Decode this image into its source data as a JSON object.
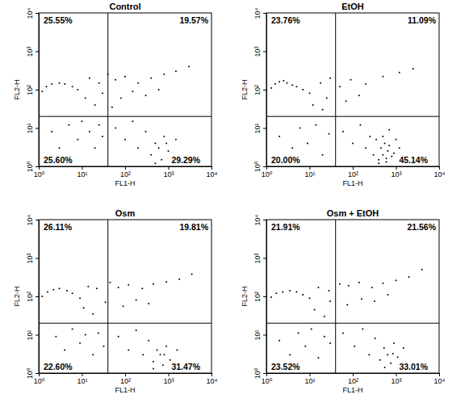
{
  "chart_data": [
    {
      "type": "scatter",
      "title": "Control",
      "x_label": "FL1-H",
      "y_label": "FL2-H",
      "log": true,
      "color": "#000000",
      "marker": "dot",
      "xlim": [
        1,
        10000
      ],
      "ylim": [
        1,
        10000
      ],
      "xticks": [
        {
          "value": 1,
          "label": "10⁰"
        },
        {
          "value": 10,
          "label": "10¹"
        },
        {
          "value": 100,
          "label": "10²"
        },
        {
          "value": 1000,
          "label": "10³"
        },
        {
          "value": 10000,
          "label": "10⁴"
        }
      ],
      "yticks": [
        {
          "value": 1,
          "label": "10⁰"
        },
        {
          "value": 10,
          "label": "10¹"
        },
        {
          "value": 100,
          "label": "10²"
        },
        {
          "value": 1000,
          "label": "10³"
        },
        {
          "value": 10000,
          "label": "10⁴"
        }
      ],
      "gate_x": 40,
      "gate_y": 20,
      "quadrants": {
        "values": [
          25.55,
          19.57,
          25.6,
          29.29
        ],
        "value_labels": [
          "25.55%",
          "19.57%",
          "25.60%",
          "29.29%"
        ]
      },
      "x": [
        1.2,
        1.5,
        2,
        3,
        4,
        6,
        8,
        15,
        25,
        40,
        60,
        100,
        200,
        400,
        800,
        1500,
        3000,
        30,
        80,
        150,
        300,
        600,
        12,
        20,
        50,
        2,
        3,
        5,
        8,
        10,
        15,
        20,
        25,
        4,
        30,
        60,
        100,
        150,
        200,
        300,
        400,
        500,
        600,
        700,
        800,
        1000,
        1500,
        500,
        900
      ],
      "values": [
        90,
        120,
        140,
        150,
        140,
        120,
        100,
        200,
        150,
        250,
        180,
        220,
        150,
        200,
        250,
        300,
        400,
        80,
        60,
        90,
        70,
        100,
        60,
        40,
        35,
        8,
        3,
        12,
        5,
        15,
        8,
        3,
        12,
        1.5,
        6,
        10,
        5,
        15,
        3,
        8,
        2,
        4,
        3,
        1.5,
        6,
        2.5,
        5,
        1.2,
        4
      ]
    },
    {
      "type": "scatter",
      "title": "EtOH",
      "x_label": "FL1-H",
      "y_label": "FL2-H",
      "log": true,
      "color": "#000000",
      "marker": "dot",
      "xlim": [
        1,
        10000
      ],
      "ylim": [
        1,
        10000
      ],
      "xticks": [
        {
          "value": 1,
          "label": "10⁰"
        },
        {
          "value": 10,
          "label": "10¹"
        },
        {
          "value": 100,
          "label": "10²"
        },
        {
          "value": 1000,
          "label": "10³"
        },
        {
          "value": 10000,
          "label": "10⁴"
        }
      ],
      "yticks": [
        {
          "value": 1,
          "label": "10⁰"
        },
        {
          "value": 10,
          "label": "10¹"
        },
        {
          "value": 100,
          "label": "10²"
        },
        {
          "value": 1000,
          "label": "10³"
        },
        {
          "value": 10000,
          "label": "10⁴"
        }
      ],
      "gate_x": 40,
      "gate_y": 20,
      "quadrants": {
        "values": [
          23.76,
          11.09,
          20.0,
          45.14
        ],
        "value_labels": [
          "23.76%",
          "11.09%",
          "20.00%",
          "45.14%"
        ]
      },
      "x": [
        1.3,
        1.6,
        2,
        2.5,
        3,
        4,
        5,
        7,
        10,
        18,
        30,
        50,
        90,
        200,
        500,
        1200,
        2500,
        25,
        70,
        140,
        12,
        20,
        2,
        4,
        6,
        9,
        14,
        20,
        28,
        3,
        60,
        100,
        150,
        200,
        250,
        300,
        350,
        400,
        450,
        500,
        550,
        600,
        650,
        700,
        800,
        900,
        1000,
        1200,
        400,
        600,
        500,
        700
      ],
      "values": [
        110,
        140,
        160,
        170,
        150,
        130,
        120,
        100,
        80,
        150,
        200,
        120,
        180,
        140,
        220,
        280,
        350,
        60,
        50,
        70,
        40,
        30,
        6,
        3,
        10,
        4,
        12,
        2,
        7,
        1.5,
        8,
        4,
        12,
        3,
        6,
        2,
        5,
        1.5,
        3,
        2,
        4,
        1.3,
        2.5,
        3.5,
        1.8,
        2.2,
        5,
        3,
        1.2,
        1.6,
        6,
        9
      ]
    },
    {
      "type": "scatter",
      "title": "Osm",
      "x_label": "FL1-H",
      "y_label": "FL2-H",
      "log": true,
      "color": "#000000",
      "marker": "dot",
      "xlim": [
        1,
        10000
      ],
      "ylim": [
        1,
        10000
      ],
      "xticks": [
        {
          "value": 1,
          "label": "10⁰"
        },
        {
          "value": 10,
          "label": "10¹"
        },
        {
          "value": 100,
          "label": "10²"
        },
        {
          "value": 1000,
          "label": "10³"
        },
        {
          "value": 10000,
          "label": "10⁴"
        }
      ],
      "yticks": [
        {
          "value": 1,
          "label": "10⁰"
        },
        {
          "value": 10,
          "label": "10¹"
        },
        {
          "value": 100,
          "label": "10²"
        },
        {
          "value": 1000,
          "label": "10³"
        },
        {
          "value": 10000,
          "label": "10⁴"
        }
      ],
      "gate_x": 40,
      "gate_y": 20,
      "quadrants": {
        "values": [
          26.11,
          19.81,
          22.6,
          31.47
        ],
        "value_labels": [
          "26.11%",
          "19.81%",
          "22.60%",
          "31.47%"
        ]
      },
      "x": [
        1.2,
        1.6,
        2.2,
        3,
        4.5,
        6,
        9,
        14,
        22,
        45,
        70,
        120,
        250,
        450,
        900,
        1800,
        3500,
        35,
        90,
        180,
        350,
        11,
        18,
        2.5,
        4,
        6,
        9,
        12,
        18,
        24,
        3,
        32,
        70,
        120,
        180,
        260,
        350,
        450,
        550,
        650,
        750,
        900,
        1100,
        1600,
        450,
        800
      ],
      "values": [
        100,
        130,
        150,
        160,
        140,
        120,
        90,
        180,
        160,
        230,
        170,
        200,
        160,
        210,
        240,
        280,
        380,
        70,
        55,
        80,
        65,
        50,
        35,
        9,
        4,
        14,
        6,
        10,
        3,
        11,
        1.6,
        5,
        9,
        4,
        13,
        3,
        7,
        2,
        4,
        3,
        1.6,
        5,
        2.2,
        4,
        1.3,
        3
      ]
    },
    {
      "type": "scatter",
      "title": "Osm + EtOH",
      "x_label": "FL1-H",
      "y_label": "FL2-H",
      "log": true,
      "color": "#000000",
      "marker": "dot",
      "xlim": [
        1,
        10000
      ],
      "ylim": [
        1,
        10000
      ],
      "xticks": [
        {
          "value": 1,
          "label": "10⁰"
        },
        {
          "value": 10,
          "label": "10¹"
        },
        {
          "value": 100,
          "label": "10²"
        },
        {
          "value": 1000,
          "label": "10³"
        },
        {
          "value": 10000,
          "label": "10⁴"
        }
      ],
      "yticks": [
        {
          "value": 1,
          "label": "10⁰"
        },
        {
          "value": 10,
          "label": "10¹"
        },
        {
          "value": 100,
          "label": "10²"
        },
        {
          "value": 1000,
          "label": "10³"
        },
        {
          "value": 10000,
          "label": "10⁴"
        }
      ],
      "gate_x": 40,
      "gate_y": 20,
      "quadrants": {
        "values": [
          21.91,
          21.56,
          23.52,
          33.01
        ],
        "value_labels": [
          "21.91%",
          "21.56%",
          "23.52%",
          "33.01%"
        ]
      },
      "x": [
        1.3,
        1.7,
        2.4,
        3.5,
        5,
        7,
        10,
        16,
        28,
        50,
        80,
        140,
        280,
        500,
        1000,
        2000,
        4000,
        30,
        75,
        160,
        320,
        650,
        13,
        22,
        2,
        3.5,
        5.5,
        8,
        11,
        16,
        22,
        30,
        60,
        110,
        170,
        240,
        330,
        430,
        530,
        640,
        760,
        900,
        1100,
        1500,
        550,
        850
      ],
      "values": [
        95,
        120,
        130,
        140,
        130,
        110,
        90,
        170,
        140,
        210,
        190,
        230,
        170,
        220,
        260,
        320,
        500,
        75,
        60,
        85,
        75,
        110,
        45,
        30,
        7,
        3,
        11,
        5,
        14,
        2.5,
        9,
        6,
        11,
        5,
        14,
        3,
        8,
        2.2,
        4.5,
        3,
        1.8,
        6,
        2.6,
        4.5,
        1.4,
        3.2
      ]
    }
  ]
}
